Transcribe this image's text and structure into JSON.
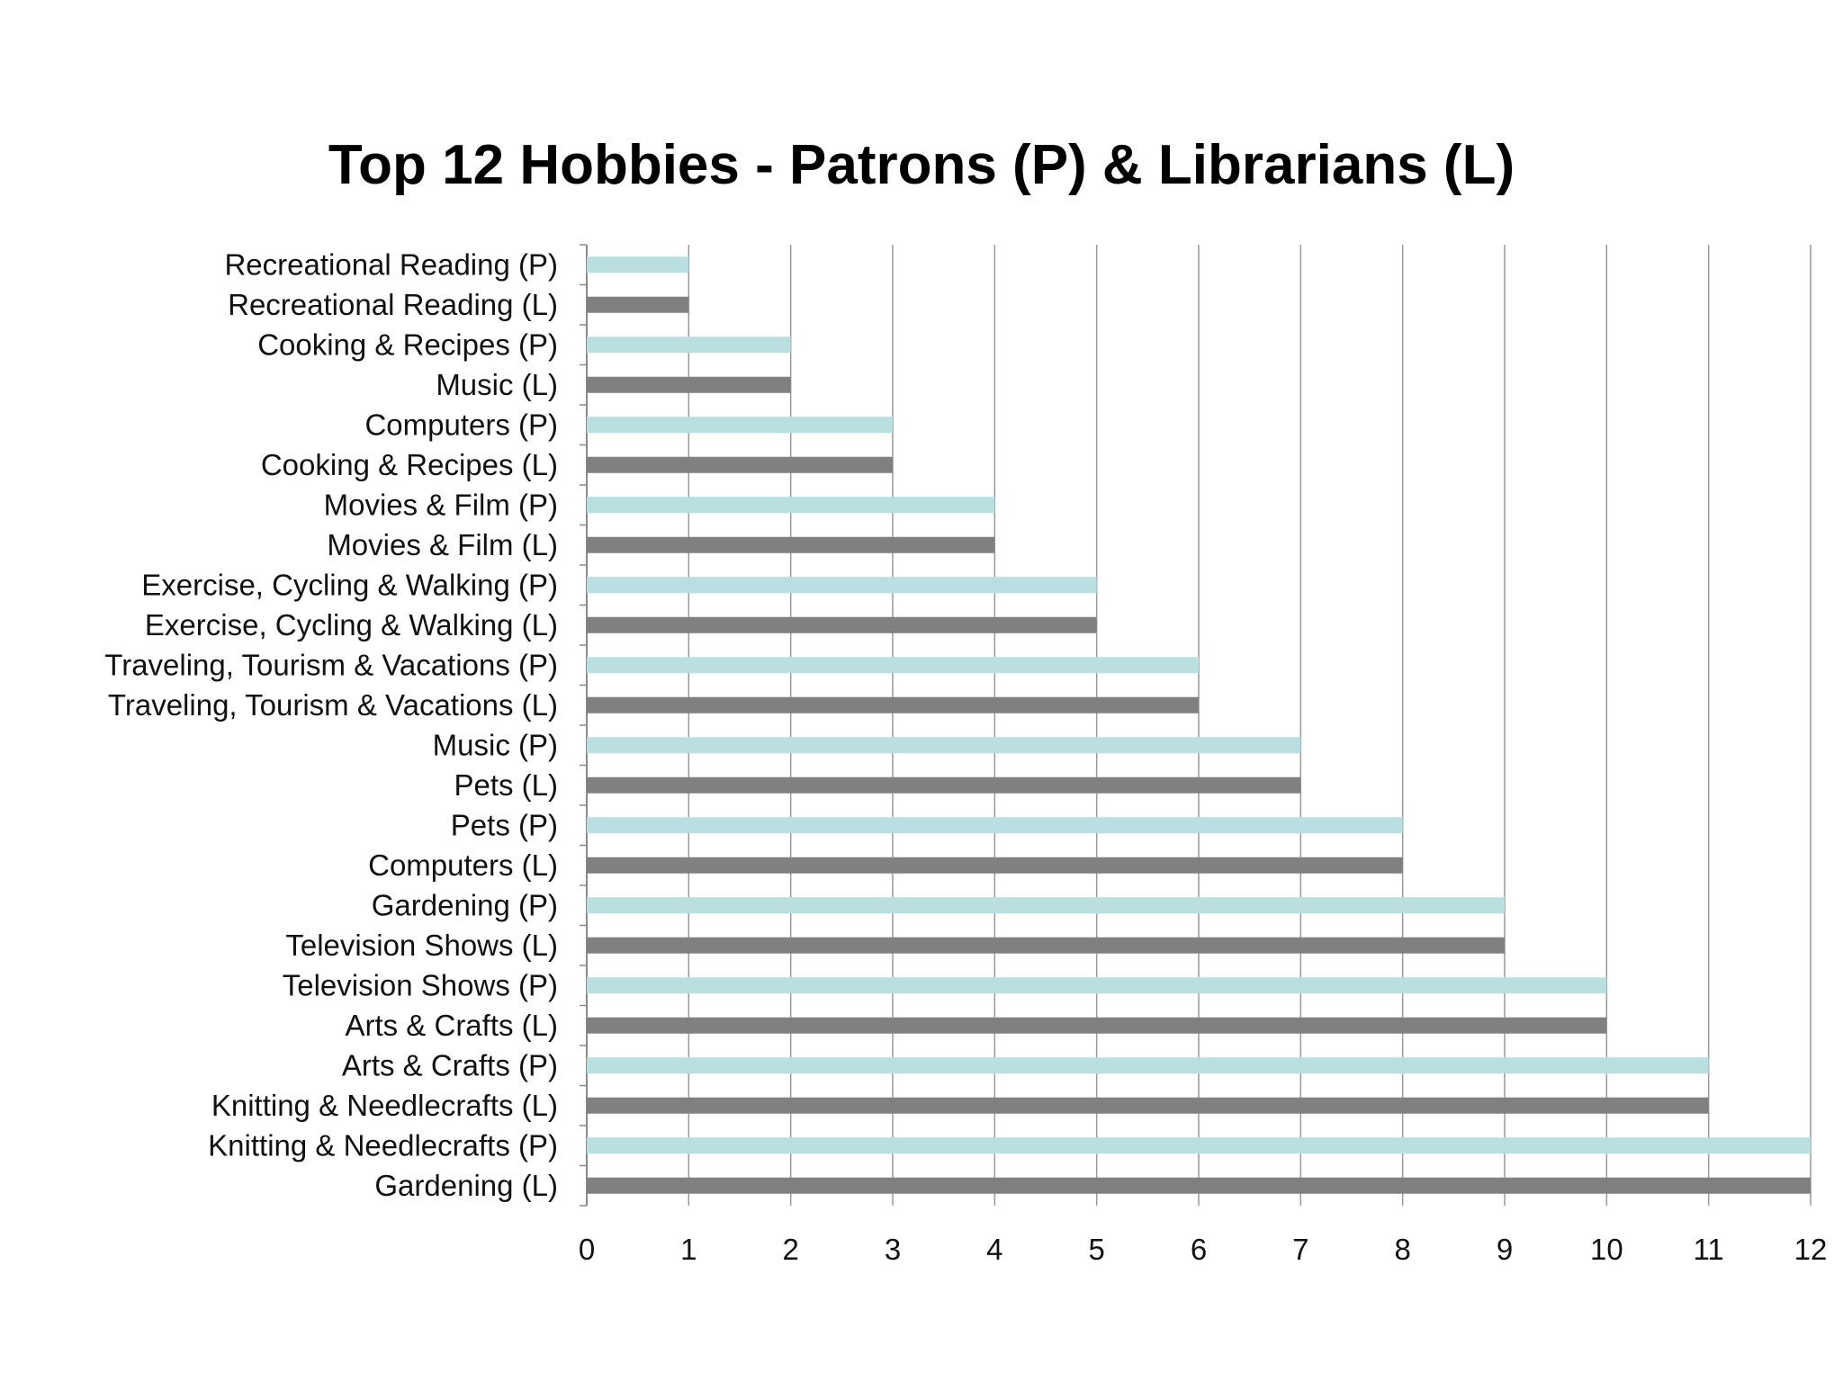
{
  "chart_data": {
    "type": "bar",
    "orientation": "horizontal",
    "title": "Top 12 Hobbies - Patrons (P) & Librarians (L)",
    "xlabel": "",
    "ylabel": "",
    "xlim": [
      0,
      12
    ],
    "x_ticks": [
      "0",
      "1",
      "2",
      "3",
      "4",
      "5",
      "6",
      "7",
      "8",
      "9",
      "10",
      "11",
      "12"
    ],
    "grid": "vertical",
    "legend": "none",
    "colors": {
      "patron": "#b9dfe0",
      "librarian": "#808080"
    },
    "categories": [
      "Recreational Reading (P)",
      "Recreational Reading (L)",
      "Cooking & Recipes (P)",
      "Music (L)",
      "Computers (P)",
      "Cooking & Recipes (L)",
      "Movies & Film (P)",
      "Movies & Film (L)",
      "Exercise, Cycling & Walking (P)",
      "Exercise, Cycling & Walking (L)",
      "Traveling, Tourism & Vacations (P)",
      "Traveling, Tourism & Vacations (L)",
      "Music (P)",
      "Pets (L)",
      "Pets (P)",
      "Computers (L)",
      "Gardening (P)",
      "Television Shows (L)",
      "Television Shows (P)",
      "Arts & Crafts (L)",
      "Arts & Crafts (P)",
      "Knitting & Needlecrafts (L)",
      "Knitting & Needlecrafts (P)",
      "Gardening (L)"
    ],
    "values": [
      1,
      1,
      2,
      2,
      3,
      3,
      4,
      4,
      5,
      5,
      6,
      6,
      7,
      7,
      8,
      8,
      9,
      9,
      10,
      10,
      11,
      11,
      12,
      12
    ],
    "groups": [
      "P",
      "L",
      "P",
      "L",
      "P",
      "L",
      "P",
      "L",
      "P",
      "L",
      "P",
      "L",
      "P",
      "L",
      "P",
      "L",
      "P",
      "L",
      "P",
      "L",
      "P",
      "L",
      "P",
      "L"
    ]
  }
}
